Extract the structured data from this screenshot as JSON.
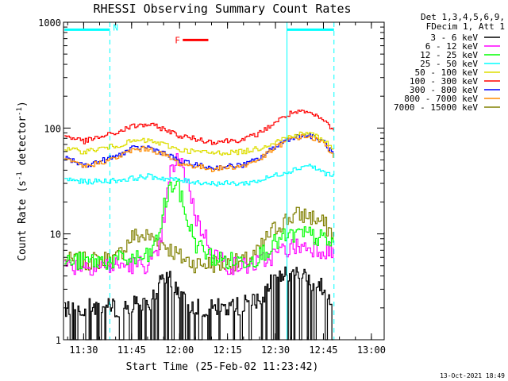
{
  "chart_data": {
    "type": "line",
    "title": "RHESSI Observing Summary Count Rates",
    "xlabel": "Start Time (25-Feb-02 11:23:42)",
    "ylabel_main": "Count Rate (s",
    "ylabel_sup1": "-1",
    "ylabel_mid": " detector",
    "ylabel_sup2": "-1",
    "ylabel_end": ")",
    "yscale": "log",
    "ylim": [
      1,
      1000
    ],
    "xlim_minutes": [
      683.7,
      784
    ],
    "x_tick_minutes": [
      690,
      705,
      720,
      735,
      750,
      765,
      780
    ],
    "x_ticks": [
      "11:30",
      "11:45",
      "12:00",
      "12:15",
      "12:30",
      "12:45",
      "13:00"
    ],
    "y_ticks": [
      {
        "value": 1,
        "label": "1"
      },
      {
        "value": 10,
        "label": "10"
      },
      {
        "value": 100,
        "label": "100"
      },
      {
        "value": 1000,
        "label": "1000"
      }
    ],
    "legend_header": [
      "Det 1,3,4,5,6,9,",
      "FDecim 1, Att 1"
    ],
    "legend_placement": "right",
    "series": [
      {
        "name": "3 - 6 keV",
        "color": "#000000",
        "x": [
          684,
          690,
          700,
          710,
          715,
          718,
          722,
          728,
          735,
          745,
          748,
          752,
          758,
          764,
          768
        ],
        "y": [
          2.0,
          2.0,
          2.0,
          2.2,
          3.8,
          3.5,
          2.2,
          2.0,
          2.0,
          2.3,
          3.5,
          4.2,
          4.0,
          3.2,
          2.0
        ]
      },
      {
        "name": "6 - 12 keV",
        "color": "#ff00ff",
        "x": [
          684,
          690,
          700,
          705,
          710,
          713,
          715,
          717,
          719,
          720,
          722,
          725,
          730,
          735,
          740,
          744,
          748,
          752,
          756,
          760,
          764,
          768
        ],
        "y": [
          5.0,
          5.0,
          5.0,
          5.1,
          5.2,
          6.0,
          15,
          38,
          50,
          46,
          35,
          14,
          7,
          5.0,
          5.0,
          5.2,
          6.0,
          7.0,
          7.6,
          7.6,
          7.2,
          6.8
        ]
      },
      {
        "name": "12 - 25 keV",
        "color": "#00ff00",
        "x": [
          684,
          690,
          700,
          705,
          710,
          713,
          715,
          717,
          719,
          720,
          722,
          725,
          730,
          735,
          740,
          744,
          748,
          752,
          756,
          760,
          764,
          768
        ],
        "y": [
          5.5,
          5.5,
          5.6,
          5.8,
          6.0,
          9,
          18,
          28,
          30,
          24,
          14,
          8,
          6.0,
          5.5,
          5.6,
          6.0,
          7.5,
          9.0,
          9.8,
          9.8,
          9.0,
          8.0
        ]
      },
      {
        "name": "25 - 50 keV",
        "color": "#00ffff",
        "x": [
          684,
          690,
          700,
          710,
          720,
          730,
          740,
          745,
          750,
          755,
          760,
          765,
          768
        ],
        "y": [
          33,
          31,
          32,
          35,
          32,
          30,
          30,
          32,
          36,
          40,
          45,
          38,
          35
        ]
      },
      {
        "name": "50 - 100 keV",
        "color": "#dede00",
        "x": [
          684,
          690,
          700,
          705,
          710,
          715,
          720,
          730,
          740,
          745,
          750,
          755,
          760,
          765,
          768
        ],
        "y": [
          63,
          60,
          68,
          75,
          76,
          70,
          62,
          58,
          60,
          65,
          75,
          85,
          90,
          78,
          62
        ]
      },
      {
        "name": "100 - 300 keV",
        "color": "#ff0000",
        "x": [
          684,
          690,
          700,
          705,
          710,
          715,
          720,
          730,
          740,
          745,
          750,
          755,
          760,
          765,
          768
        ],
        "y": [
          85,
          75,
          90,
          104,
          108,
          98,
          84,
          74,
          78,
          90,
          115,
          140,
          140,
          118,
          95
        ]
      },
      {
        "name": "300 - 800 keV",
        "color": "#0000ff",
        "x": [
          684,
          690,
          700,
          705,
          710,
          715,
          720,
          730,
          740,
          745,
          750,
          755,
          760,
          765,
          768
        ],
        "y": [
          52,
          44,
          54,
          64,
          66,
          58,
          48,
          42,
          45,
          52,
          68,
          82,
          86,
          74,
          56
        ]
      },
      {
        "name": "800 - 7000 keV",
        "color": "#ff8c00",
        "x": [
          684,
          690,
          700,
          705,
          710,
          715,
          720,
          730,
          740,
          745,
          750,
          755,
          760,
          765,
          768
        ],
        "y": [
          50,
          43,
          52,
          62,
          64,
          56,
          46,
          41,
          44,
          51,
          66,
          80,
          84,
          72,
          55
        ]
      },
      {
        "name": "7000 - 15000 keV",
        "color": "#808000",
        "x": [
          684,
          690,
          700,
          705,
          710,
          715,
          720,
          725,
          730,
          735,
          740,
          744,
          748,
          752,
          756,
          760,
          764,
          768
        ],
        "y": [
          5.5,
          5.5,
          5.8,
          9.5,
          9.5,
          8.0,
          6.0,
          5.2,
          5.2,
          5.2,
          5.4,
          6.5,
          10,
          13,
          15,
          15,
          13,
          10
        ]
      }
    ],
    "annotations": [
      {
        "label": "N",
        "color": "#00ffff",
        "bar_x_minutes": [
          684,
          698.2
        ],
        "y": 850,
        "dashed_lines_at_minutes": [
          698.2
        ]
      },
      {
        "label": "",
        "color": "#00ffff",
        "bar_x_minutes": [
          753.6,
          768.3
        ],
        "y": 850,
        "dashed_lines_at_minutes": [
          768.3
        ],
        "solid_lines_at_minutes": [
          753.6
        ]
      },
      {
        "label": "F",
        "color": "#ff0000",
        "bar_x_minutes": [
          721,
          729
        ],
        "y": 680
      }
    ],
    "timestamp": "13-Oct-2021 18:49"
  }
}
